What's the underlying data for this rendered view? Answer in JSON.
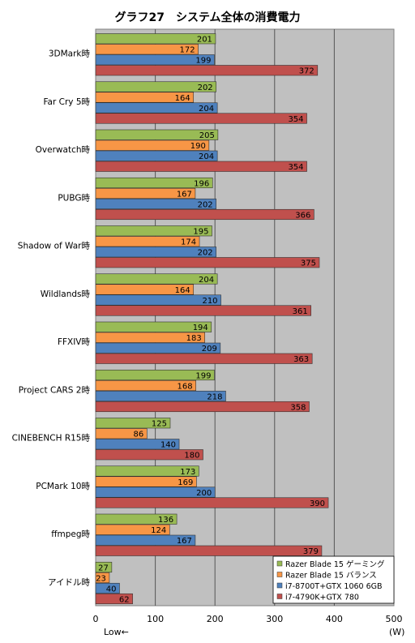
{
  "chart_data": {
    "type": "bar",
    "orientation": "horizontal",
    "title": "グラフ27　システム全体の消費電力",
    "xlabel": "",
    "unit_label": "(W)",
    "low_label": "Low←",
    "xlim": [
      0,
      500
    ],
    "x_ticks": [
      0,
      100,
      200,
      300,
      400,
      500
    ],
    "grid": true,
    "legend_position": "bottom-right",
    "categories": [
      "3DMark時",
      "Far Cry 5時",
      "Overwatch時",
      "PUBG時",
      "Shadow of War時",
      "Wildlands時",
      "FFXIV時",
      "Project CARS 2時",
      "CINEBENCH R15時",
      "PCMark 10時",
      "ffmpeg時",
      "アイドル時"
    ],
    "series": [
      {
        "name": "Razer Blade 15 ゲーミング",
        "color": "#99bb55",
        "values": [
          201,
          202,
          205,
          196,
          195,
          204,
          194,
          199,
          125,
          173,
          136,
          27
        ]
      },
      {
        "name": "Razer Blade 15 バランス",
        "color": "#f79646",
        "values": [
          172,
          164,
          190,
          167,
          174,
          164,
          183,
          168,
          86,
          169,
          124,
          23
        ]
      },
      {
        "name": "i7-8700T+GTX 1060 6GB",
        "color": "#4f81bd",
        "values": [
          199,
          204,
          204,
          202,
          202,
          210,
          209,
          218,
          140,
          200,
          167,
          40
        ]
      },
      {
        "name": "i7-4790K+GTX 780",
        "color": "#c0504d",
        "values": [
          372,
          354,
          354,
          366,
          375,
          361,
          363,
          358,
          180,
          390,
          379,
          62
        ]
      }
    ]
  }
}
